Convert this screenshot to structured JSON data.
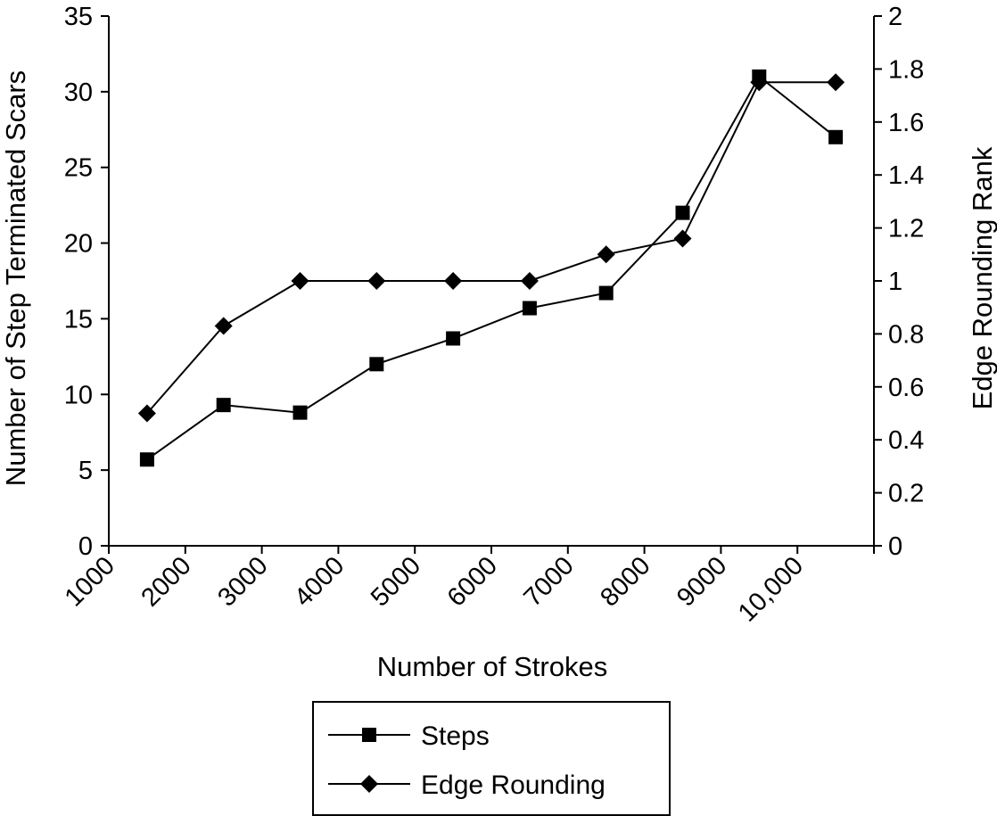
{
  "chart_data": {
    "type": "line",
    "title": "",
    "xlabel": "Number of Strokes",
    "ylabel": "Number of Step Terminated Scars",
    "y2label": "Edge Rounding Rank",
    "x_tick_labels": [
      "1000",
      "2000",
      "3000",
      "4000",
      "5000",
      "6000",
      "7000",
      "8000",
      "9000",
      "10,000"
    ],
    "y_ticks": [
      0,
      5,
      10,
      15,
      20,
      25,
      30,
      35
    ],
    "y2_ticks": [
      "0",
      "0.2",
      "0.4",
      "0.6",
      "0.8",
      "1",
      "1.2",
      "1.4",
      "1.6",
      "1.8",
      "2"
    ],
    "ylim": [
      0,
      35
    ],
    "y2lim": [
      0,
      2
    ],
    "grid": false,
    "legend_position": "bottom-center",
    "series": [
      {
        "name": "Steps",
        "axis": "left",
        "marker": "square",
        "x": [
          1500,
          2500,
          3500,
          4500,
          5500,
          6500,
          7500,
          8500,
          9500,
          10500
        ],
        "values": [
          5.7,
          9.3,
          8.8,
          12,
          13.7,
          15.7,
          16.7,
          22,
          31,
          27
        ]
      },
      {
        "name": "Edge Rounding",
        "axis": "right",
        "marker": "diamond",
        "x": [
          1500,
          2500,
          3500,
          4500,
          5500,
          6500,
          7500,
          8500,
          9500,
          10500
        ],
        "values": [
          0.5,
          0.83,
          1.0,
          1.0,
          1.0,
          1.0,
          1.1,
          1.16,
          1.75,
          1.75
        ]
      }
    ]
  }
}
